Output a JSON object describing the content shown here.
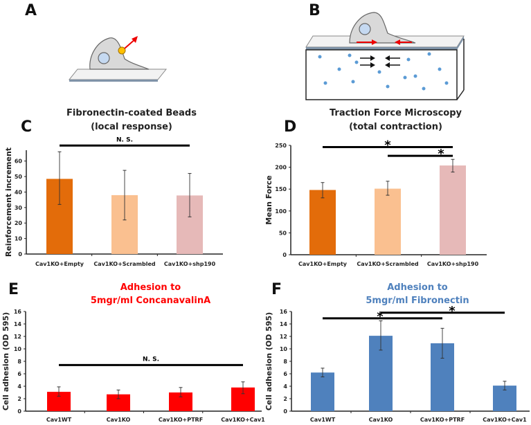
{
  "panels": {
    "a": "A",
    "b": "B"
  },
  "chart_data": [
    {
      "panel": "C",
      "type": "bar",
      "title": [
        "Fibronectin-coated Beads",
        "(local response)"
      ],
      "title_color": "#222222",
      "ylabel": "Reinforcement increment",
      "xlabel": "",
      "categories": [
        "Cav1KO+Empty",
        "Cav1KO+Scrambled",
        "Cav1KO+shp190"
      ],
      "values": [
        48.5,
        38,
        37.8
      ],
      "error_low": [
        32,
        22,
        24
      ],
      "error_high": [
        66,
        54,
        52
      ],
      "colors": [
        "#e36c0a",
        "#fac090",
        "#e6b9b8"
      ],
      "ylim": [
        0,
        67
      ],
      "yticks": [
        0,
        10,
        20,
        30,
        40,
        50,
        60
      ],
      "significance": [
        {
          "from": 0,
          "to": 2,
          "label": "N. S.",
          "level": 70
        }
      ]
    },
    {
      "panel": "D",
      "type": "bar",
      "title": [
        "Traction Force Microscopy",
        "(total contraction)"
      ],
      "title_color": "#222222",
      "ylabel": "Mean Force",
      "xlabel": "",
      "categories": [
        "Cav1KO+Empty",
        "Cav1KO+Scrambled",
        "Cav1KO+shp190"
      ],
      "values": [
        148,
        151,
        204
      ],
      "error_low": [
        130,
        136,
        189
      ],
      "error_high": [
        165,
        168,
        218
      ],
      "colors": [
        "#e36c0a",
        "#fac090",
        "#e6b9b8"
      ],
      "ylim": [
        0,
        250
      ],
      "yticks": [
        0,
        50,
        100,
        150,
        200,
        250
      ],
      "significance": [
        {
          "from": 0,
          "to": 2,
          "label": "*",
          "level": 246
        },
        {
          "from": 1,
          "to": 2,
          "label": "*",
          "level": 226
        }
      ]
    },
    {
      "panel": "E",
      "type": "bar",
      "title": [
        "Adhesion to",
        "5mgr/ml ConcanavalinA"
      ],
      "title_color": "#ff0000",
      "ylabel": "Cell adhesion (OD 595)",
      "xlabel": "",
      "categories": [
        "Cav1WT",
        "Cav1KO",
        "Cav1KO+PTRF",
        "Cav1KO+Cav1"
      ],
      "values": [
        3.1,
        2.7,
        3.0,
        3.8
      ],
      "error_low": [
        2.4,
        2.0,
        2.3,
        2.8
      ],
      "error_high": [
        3.9,
        3.4,
        3.8,
        4.7
      ],
      "colors": [
        "#ff0000",
        "#ff0000",
        "#ff0000",
        "#ff0000"
      ],
      "ylim": [
        0,
        16
      ],
      "yticks": [
        0,
        2,
        4,
        6,
        8,
        10,
        12,
        14,
        16
      ],
      "significance": [
        {
          "from": 0,
          "to": 3,
          "label": "N. S.",
          "level": 7.4
        }
      ]
    },
    {
      "panel": "F",
      "type": "bar",
      "title": [
        "Adhesion to",
        "5mgr/ml Fibronectin"
      ],
      "title_color": "#4f81bd",
      "ylabel": "Cell adhesion (OD 595)",
      "xlabel": "",
      "categories": [
        "Cav1WT",
        "Cav1KO",
        "Cav1KO+PTRF",
        "Cav1KO+Cav1"
      ],
      "values": [
        6.2,
        12.1,
        10.9,
        4.1
      ],
      "error_low": [
        5.5,
        9.8,
        8.5,
        3.4
      ],
      "error_high": [
        6.9,
        14.5,
        13.3,
        4.8
      ],
      "colors": [
        "#4f81bd",
        "#4f81bd",
        "#4f81bd",
        "#4f81bd"
      ],
      "ylim": [
        0,
        16
      ],
      "yticks": [
        0,
        2,
        4,
        6,
        8,
        10,
        12,
        14,
        16
      ],
      "significance": [
        {
          "from": 0,
          "to": 2,
          "label": "*",
          "level": 14.9
        },
        {
          "from": 1,
          "to": 3,
          "label": "*",
          "level": 15.8
        }
      ]
    }
  ]
}
